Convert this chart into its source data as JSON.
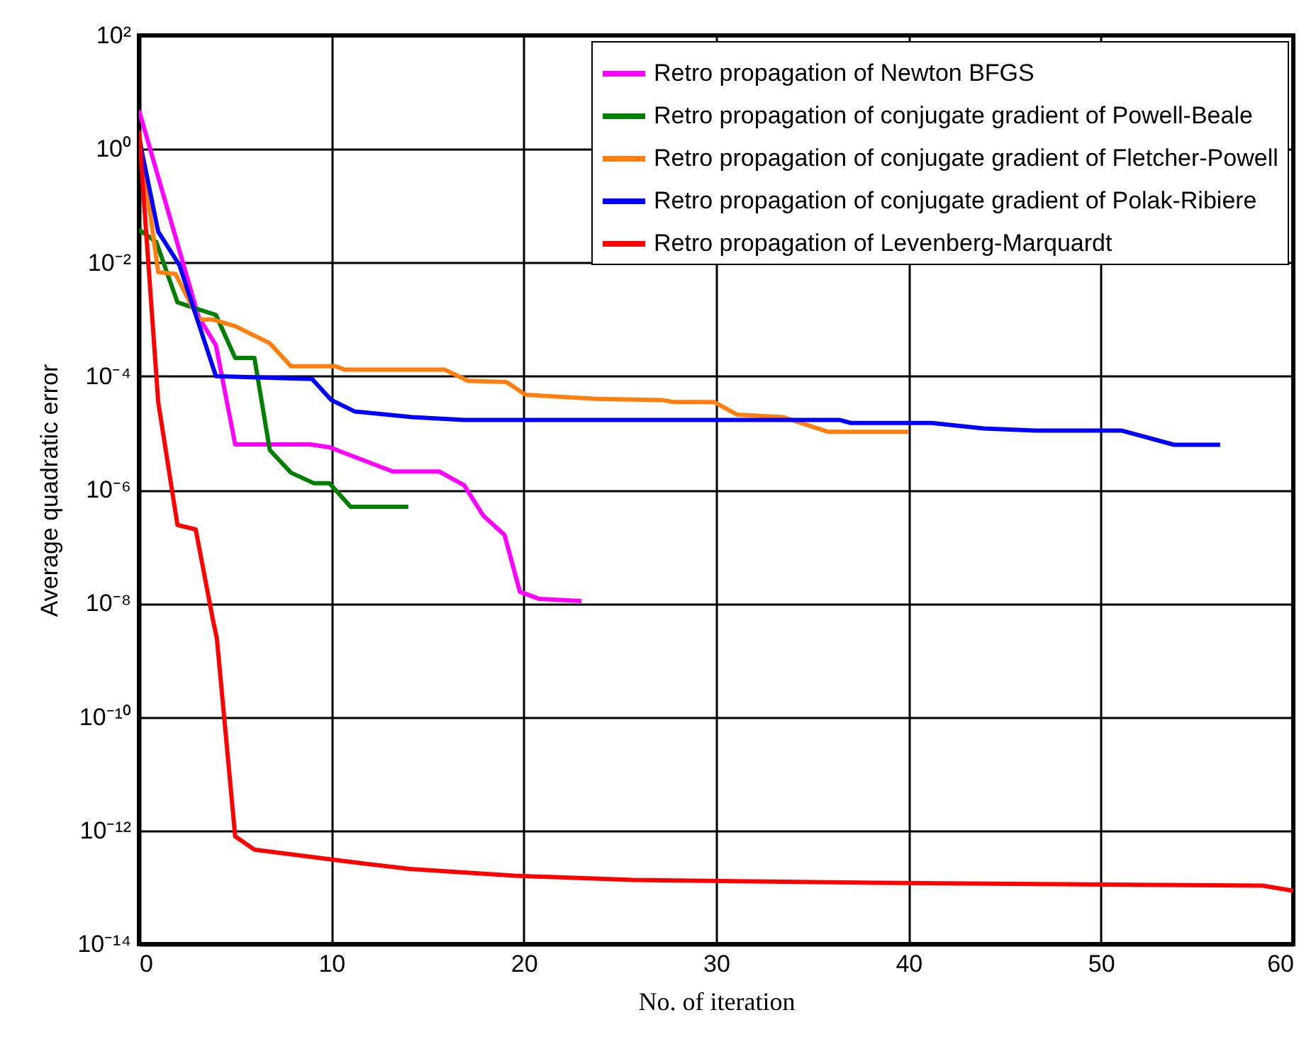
{
  "chart_data": {
    "type": "line",
    "xlabel": "No. of iteration",
    "ylabel": "Average quadratic error",
    "log": "y",
    "grid": true,
    "legend": "top right",
    "xlim": [
      0,
      60
    ],
    "xticks": [
      0,
      10,
      20,
      30,
      40,
      50,
      60
    ],
    "ylim": [
      1e-14,
      100
    ],
    "yticks": [
      {
        "value": 100,
        "label": "10²"
      },
      {
        "value": 1,
        "label": "10⁰"
      },
      {
        "value": 0.01,
        "label": "10⁻²"
      },
      {
        "value": 0.0001,
        "label": "10⁻⁴"
      },
      {
        "value": 1e-06,
        "label": "10⁻⁶"
      },
      {
        "value": 1e-08,
        "label": "10⁻⁸"
      },
      {
        "value": 1e-10,
        "label": "10⁻¹⁰"
      },
      {
        "value": 1e-12,
        "label": "10⁻¹²"
      },
      {
        "value": 1e-14,
        "label": "10⁻¹⁴"
      }
    ],
    "series": [
      {
        "name": "Retro propagation of Newton BFGS",
        "color": "#ff00ff",
        "x": [
          0,
          3.1,
          4,
          5,
          8.9,
          9.9,
          13.2,
          15.6,
          16.9,
          17.9,
          19,
          19.8,
          20.8,
          23
        ],
        "values": [
          4.8,
          0.0011,
          0.00035,
          6.3e-06,
          6.3e-06,
          5.6e-06,
          2.1e-06,
          2.1e-06,
          1.2e-06,
          3.5e-07,
          1.6e-07,
          1.6e-08,
          1.2e-08,
          1.1e-08
        ]
      },
      {
        "name": "Retro propagation of conjugate gradient of Powell-Beale",
        "color": "#008000",
        "x": [
          0,
          0.9,
          2,
          3.1,
          4,
          5,
          6,
          6.8,
          7.9,
          9.1,
          9.9,
          11,
          14
        ],
        "values": [
          0.038,
          0.023,
          0.002,
          0.0015,
          0.0012,
          0.00021,
          0.00021,
          5e-06,
          2e-06,
          1.3e-06,
          1.3e-06,
          5e-07,
          5e-07
        ]
      },
      {
        "name": "Retro propagation of conjugate gradient of Fletcher-Powell",
        "color": "#ff7f0e",
        "x": [
          0,
          1,
          1.9,
          3.1,
          3.8,
          5,
          6.8,
          7.9,
          10.2,
          10.7,
          15.9,
          17.1,
          19.1,
          20.1,
          23.8,
          27.2,
          27.8,
          29.9,
          31.1,
          33.5,
          35.8,
          40
        ],
        "values": [
          2,
          0.0068,
          0.0063,
          0.001,
          0.001,
          0.00076,
          0.00038,
          0.00015,
          0.00015,
          0.00013,
          0.00013,
          8.3e-05,
          7.9e-05,
          4.7e-05,
          4e-05,
          3.8e-05,
          3.5e-05,
          3.5e-05,
          2.1e-05,
          1.9e-05,
          1.05e-05,
          1.05e-05
        ]
      },
      {
        "name": "Retro propagation of conjugate gradient of Polak-Ribiere",
        "color": "#0000ff",
        "x": [
          0,
          1,
          2.1,
          4,
          9,
          10,
          11.2,
          14.2,
          16.9,
          36.4,
          37,
          41.2,
          43.9,
          46.6,
          51.1,
          53.8,
          56.2
        ],
        "values": [
          1.6,
          0.035,
          0.0091,
          0.0001,
          8.9e-05,
          3.8e-05,
          2.4e-05,
          1.9e-05,
          1.7e-05,
          1.7e-05,
          1.5e-05,
          1.5e-05,
          1.2e-05,
          1.1e-05,
          1.1e-05,
          6.2e-06,
          6.2e-06
        ]
      },
      {
        "name": "Retro propagation of Levenberg-Marquardt",
        "color": "#ff0000",
        "x": [
          0,
          1,
          2,
          2.95,
          3.85,
          4.05,
          5,
          6,
          11,
          14.1,
          19.5,
          25.7,
          38.4,
          58.4,
          60
        ],
        "values": [
          2.1,
          3.5e-05,
          2.4e-07,
          2e-07,
          5e-09,
          2.4e-09,
          7.9e-13,
          4.6e-13,
          2.8e-13,
          2.1e-13,
          1.6e-13,
          1.35e-13,
          1.2e-13,
          1.07e-13,
          8.7e-14
        ]
      }
    ]
  }
}
